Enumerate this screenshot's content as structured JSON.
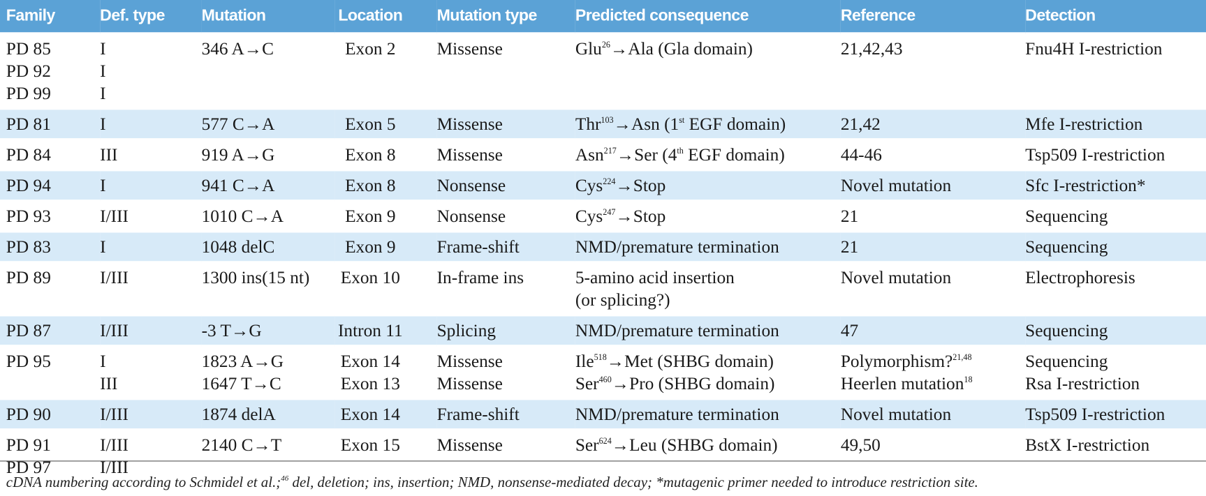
{
  "table": {
    "header": [
      "Family",
      "Def. type",
      "Mutation",
      "Location",
      "Mutation type",
      "Predicted consequence",
      "Reference",
      "Detection"
    ],
    "rows": [
      [
        [
          "PD 85",
          "PD 92",
          "PD 99"
        ],
        [
          "I",
          "I",
          "I"
        ],
        [
          "346 A→C"
        ],
        [
          "Exon 2"
        ],
        [
          "Missense"
        ],
        [
          [
            "Glu",
            {
              "sup": "26"
            },
            "→Ala (Gla domain)"
          ]
        ],
        [
          "21,42,43"
        ],
        [
          "Fnu4H I-restriction"
        ]
      ],
      [
        [
          "PD 81"
        ],
        [
          "I"
        ],
        [
          "577 C→A"
        ],
        [
          "Exon 5"
        ],
        [
          "Missense"
        ],
        [
          [
            "Thr",
            {
              "sup": "103"
            },
            "→Asn (1",
            {
              "sup": "st"
            },
            " EGF domain)"
          ]
        ],
        [
          "21,42"
        ],
        [
          "Mfe I-restriction"
        ]
      ],
      [
        [
          "PD 84"
        ],
        [
          "III"
        ],
        [
          "919 A→G"
        ],
        [
          "Exon 8"
        ],
        [
          "Missense"
        ],
        [
          [
            "Asn",
            {
              "sup": "217"
            },
            "→Ser (4",
            {
              "sup": "th"
            },
            " EGF domain)"
          ]
        ],
        [
          "44-46"
        ],
        [
          "Tsp509 I-restriction"
        ]
      ],
      [
        [
          "PD 94"
        ],
        [
          "I"
        ],
        [
          "941 C→A"
        ],
        [
          "Exon 8"
        ],
        [
          "Nonsense"
        ],
        [
          [
            "Cys",
            {
              "sup": "224"
            },
            "→Stop"
          ]
        ],
        [
          "Novel mutation"
        ],
        [
          "Sfc I-restriction*"
        ]
      ],
      [
        [
          "PD 93"
        ],
        [
          "I/III"
        ],
        [
          "1010 C→A"
        ],
        [
          "Exon 9"
        ],
        [
          "Nonsense"
        ],
        [
          [
            "Cys",
            {
              "sup": "247"
            },
            "→Stop"
          ]
        ],
        [
          "21"
        ],
        [
          "Sequencing"
        ]
      ],
      [
        [
          "PD 83"
        ],
        [
          "I"
        ],
        [
          "1048 delC"
        ],
        [
          "Exon 9"
        ],
        [
          "Frame-shift"
        ],
        [
          "NMD/premature termination"
        ],
        [
          "21"
        ],
        [
          "Sequencing"
        ]
      ],
      [
        [
          "PD 89"
        ],
        [
          "I/III"
        ],
        [
          "1300 ins(15 nt)"
        ],
        [
          "Exon 10"
        ],
        [
          "In-frame ins"
        ],
        [
          "5-amino acid insertion",
          " (or splicing?)"
        ],
        [
          "Novel mutation"
        ],
        [
          "Electrophoresis"
        ]
      ],
      [
        [
          "PD 87"
        ],
        [
          "I/III"
        ],
        [
          "-3 T→G"
        ],
        [
          "Intron 11"
        ],
        [
          "Splicing"
        ],
        [
          "NMD/premature termination"
        ],
        [
          "47"
        ],
        [
          "Sequencing"
        ]
      ],
      [
        [
          "PD 95"
        ],
        [
          "I",
          "III"
        ],
        [
          "1823 A→G",
          "1647 T→C"
        ],
        [
          "Exon 14",
          "Exon 13"
        ],
        [
          "Missense",
          "Missense"
        ],
        [
          [
            "Ile",
            {
              "sup": "518"
            },
            "→Met (SHBG domain)"
          ],
          [
            "Ser",
            {
              "sup": "460"
            },
            "→Pro (SHBG domain)"
          ]
        ],
        [
          [
            "Polymorphism?",
            {
              "sup": "21,48"
            }
          ],
          [
            "Heerlen mutation",
            {
              "sup": "18"
            }
          ]
        ],
        [
          "Sequencing",
          "Rsa I-restriction"
        ]
      ],
      [
        [
          "PD 90"
        ],
        [
          "I/III"
        ],
        [
          "1874 delA"
        ],
        [
          "Exon 14"
        ],
        [
          "Frame-shift"
        ],
        [
          "NMD/premature termination"
        ],
        [
          "Novel mutation"
        ],
        [
          "Tsp509 I-restriction"
        ]
      ],
      [
        [
          "PD 91",
          "PD 97"
        ],
        [
          "I/III",
          "I/III"
        ],
        [
          "2140 C→T"
        ],
        [
          "Exon 15"
        ],
        [
          "Missense"
        ],
        [
          [
            "Ser",
            {
              "sup": "624"
            },
            "→Leu (SHBG domain)"
          ]
        ],
        [
          "49,50"
        ],
        [
          "BstX I-restriction"
        ]
      ]
    ]
  },
  "footnote": [
    "cDNA numbering according to Schmidel et al.;",
    {
      "sup": "46"
    },
    " del, deletion; ins, insertion; NMD, nonsense-mediated decay; *mutagenic primer needed to introduce restriction site."
  ]
}
